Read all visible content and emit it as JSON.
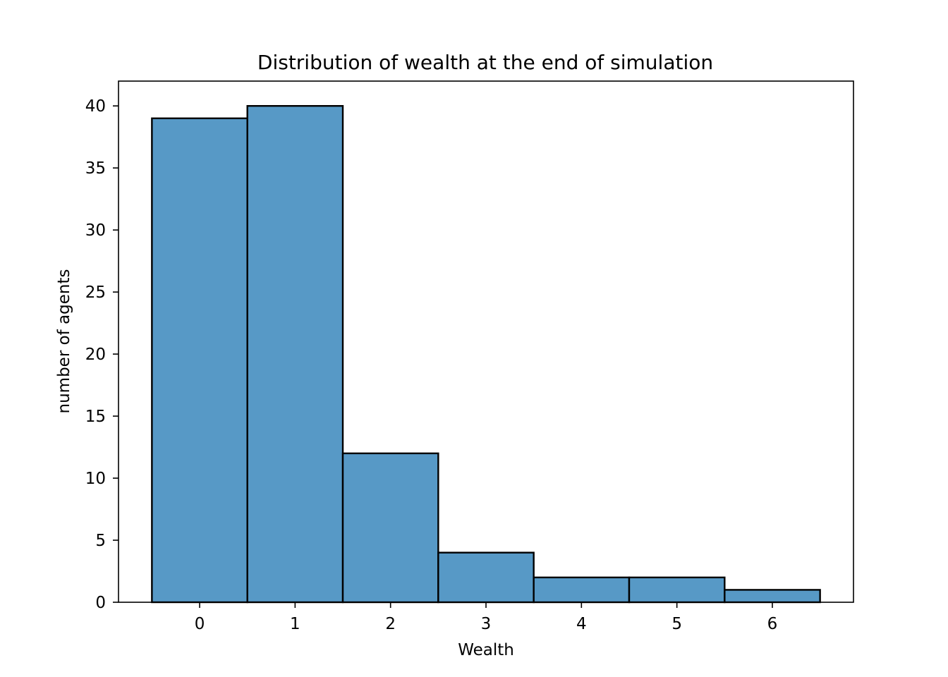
{
  "chart_data": {
    "type": "bar",
    "title": "Distribution of wealth at the end of simulation",
    "xlabel": "Wealth",
    "ylabel": "number of agents",
    "categories": [
      "0",
      "1",
      "2",
      "3",
      "4",
      "5",
      "6"
    ],
    "x": [
      0,
      1,
      2,
      3,
      4,
      5,
      6
    ],
    "values": [
      39,
      40,
      12,
      4,
      2,
      2,
      1
    ],
    "xlim": [
      -0.85,
      6.85
    ],
    "ylim": [
      0,
      42
    ],
    "xticks": [
      0,
      1,
      2,
      3,
      4,
      5,
      6
    ],
    "yticks": [
      0,
      5,
      10,
      15,
      20,
      25,
      30,
      35,
      40
    ],
    "bar_color": "#5799c6",
    "edge_color": "#000000",
    "grid": false,
    "legend": "none"
  }
}
